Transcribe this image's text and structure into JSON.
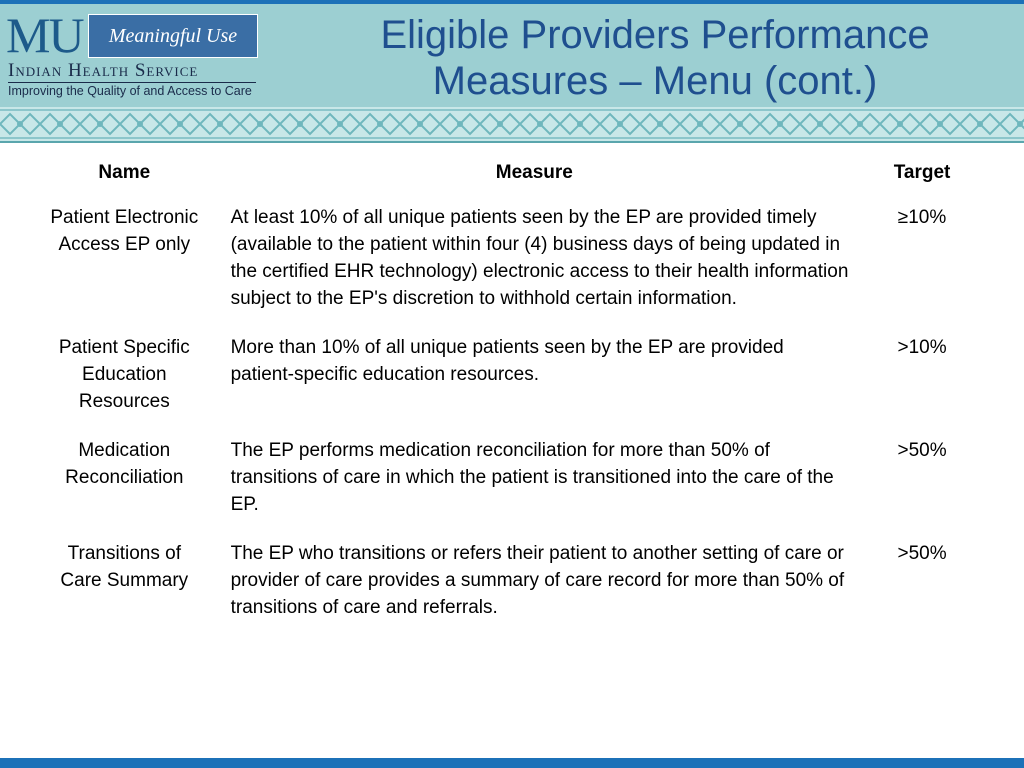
{
  "logo": {
    "mu": "MU",
    "box": "Meaningful Use",
    "org": "Indian Health Service",
    "tagline": "Improving the Quality of and Access to Care"
  },
  "title": "Eligible Providers Performance Measures – Menu (cont.)",
  "colors": {
    "header_bg": "#9ccfd2",
    "title": "#1f4f8f",
    "accent": "#1c71b8"
  },
  "table": {
    "headers": {
      "name": "Name",
      "measure": "Measure",
      "target": "Target"
    },
    "rows": [
      {
        "name": "Patient Electronic Access EP only",
        "measure": "At least 10% of all unique patients seen by the EP are provided timely (available to the patient within four (4) business days of being updated in the certified EHR technology) electronic access to their health information subject to the EP's discretion to withhold certain information.",
        "target": "≥10%"
      },
      {
        "name": "Patient Specific Education Resources",
        "measure": "More than 10% of all unique patients seen by the EP are provided patient-specific education resources.",
        "target": ">10%"
      },
      {
        "name": "Medication Reconciliation",
        "measure": "The EP performs medication reconciliation for more than 50% of transitions of care in which the patient is transitioned into the care of the EP.",
        "target": ">50%"
      },
      {
        "name": "Transitions of Care Summary",
        "measure": "The EP who transitions or refers their patient to another setting of care or provider of care provides a summary of care record for more than 50% of transitions of care and referrals.",
        "target": ">50%"
      }
    ]
  }
}
